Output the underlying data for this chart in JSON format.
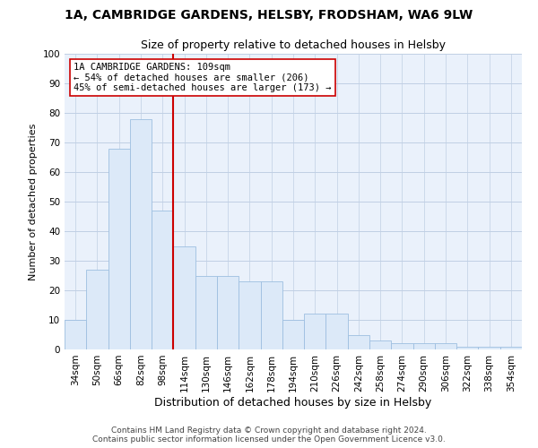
{
  "title": "1A, CAMBRIDGE GARDENS, HELSBY, FRODSHAM, WA6 9LW",
  "subtitle": "Size of property relative to detached houses in Helsby",
  "xlabel": "Distribution of detached houses by size in Helsby",
  "ylabel": "Number of detached properties",
  "bar_labels": [
    "34sqm",
    "50sqm",
    "66sqm",
    "82sqm",
    "98sqm",
    "114sqm",
    "130sqm",
    "146sqm",
    "162sqm",
    "178sqm",
    "194sqm",
    "210sqm",
    "226sqm",
    "242sqm",
    "258sqm",
    "274sqm",
    "290sqm",
    "306sqm",
    "322sqm",
    "338sqm",
    "354sqm"
  ],
  "bar_values": [
    10,
    27,
    68,
    78,
    47,
    35,
    25,
    25,
    23,
    23,
    10,
    12,
    12,
    5,
    3,
    2,
    2,
    2,
    1,
    1,
    1
  ],
  "bar_color": "#dce9f8",
  "bar_edge_color": "#9dbfe0",
  "vline_color": "#cc0000",
  "ylim": [
    0,
    100
  ],
  "vline_index": 5,
  "annotation_text": "1A CAMBRIDGE GARDENS: 109sqm\n← 54% of detached houses are smaller (206)\n45% of semi-detached houses are larger (173) →",
  "annotation_box_color": "#ffffff",
  "annotation_box_edge": "#cc0000",
  "footer_line1": "Contains HM Land Registry data © Crown copyright and database right 2024.",
  "footer_line2": "Contains public sector information licensed under the Open Government Licence v3.0.",
  "plot_bg_color": "#eaf1fb",
  "title_fontsize": 10,
  "subtitle_fontsize": 9,
  "xlabel_fontsize": 9,
  "ylabel_fontsize": 8,
  "tick_fontsize": 7.5,
  "annotation_fontsize": 7.5,
  "footer_fontsize": 6.5
}
